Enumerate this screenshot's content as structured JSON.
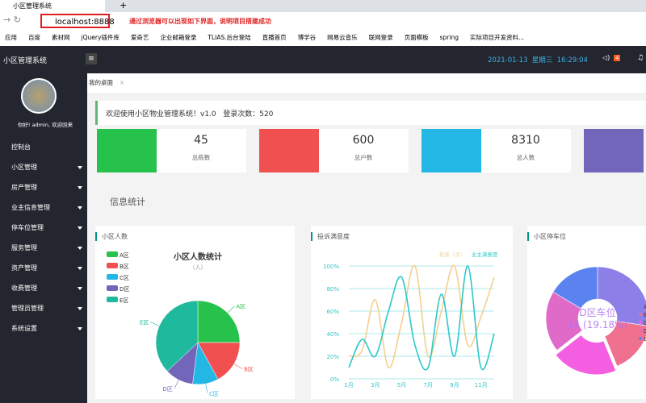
{
  "browser": {
    "tab_title": "小区管理系统",
    "address": "localhost:8888",
    "annotation": "通过浏览器可以出现如下界面，说明项目搭建成功",
    "bookmarks": [
      "应用",
      "百度",
      "素材网",
      "jQuery插件库",
      "爱奇艺",
      "企业邮箱登录",
      "TLIAS.后台登陆",
      "直播首页",
      "博学谷",
      "网易云音乐",
      "联网登录",
      "页面模板",
      "spring",
      "实际项目开发资料..."
    ]
  },
  "app": {
    "title": "小区管理系统",
    "datetime": "2021-01-13  星期三  16:29:04",
    "notice_count": 4,
    "user_greeting": "你好! admin, 欢迎回来",
    "menu": [
      "控制台",
      "小区管理",
      "房产管理",
      "业主信息管理",
      "停车位管理",
      "服务管理",
      "资产管理",
      "收费管理",
      "管理员管理",
      "系统设置"
    ],
    "tab": "我的桌面",
    "welcome": "欢迎使用小区物业管理系统！v1.0   登录次数：520",
    "stats": [
      {
        "value": 45,
        "label": "总栋数"
      },
      {
        "value": 600,
        "label": "总户数"
      },
      {
        "value": 8310,
        "label": "总人数"
      }
    ],
    "section_title": "信息统计",
    "panels": [
      "小区人数",
      "投诉满意度",
      "小区停车位"
    ]
  },
  "chart_data": [
    {
      "type": "pie",
      "title": "小区人数统计",
      "subtitle": "（人）",
      "categories": [
        "A区",
        "B区",
        "C区",
        "D区",
        "E区"
      ],
      "values": [
        25,
        17,
        10,
        11,
        37
      ],
      "colors": [
        "#27c24c",
        "#f05050",
        "#23b7e5",
        "#7266ba",
        "#1fb99e"
      ]
    },
    {
      "type": "line",
      "categories": [
        "1月",
        null,
        "3月",
        null,
        "5月",
        null,
        "7月",
        null,
        "9月",
        null,
        "11月",
        null
      ],
      "ylim": [
        0,
        100
      ],
      "yticks": [
        {
          "value": 0,
          "label": "0%"
        },
        {
          "value": 20,
          "label": "20%"
        },
        {
          "value": 40,
          "label": "40%"
        },
        {
          "value": 60,
          "label": "60%"
        },
        {
          "value": 80,
          "label": "80%"
        },
        {
          "value": 100,
          "label": "100%"
        }
      ],
      "grid": true,
      "series": [
        {
          "name": "投诉（次）",
          "color": "#f5cf8e",
          "values": [
            20,
            25,
            70,
            10,
            50,
            100,
            20,
            60,
            100,
            30,
            55,
            90
          ]
        },
        {
          "name": "业主满意度",
          "color": "#2ec7c9",
          "values": [
            10,
            35,
            20,
            60,
            90,
            30,
            10,
            75,
            20,
            100,
            10,
            40
          ]
        }
      ]
    },
    {
      "type": "donut",
      "categories": [
        "A区",
        "B区",
        "C区",
        "D区",
        "E区"
      ],
      "values": [
        20,
        12,
        15,
        14,
        12
      ],
      "colors": [
        "#8d7fe8",
        "#f07090",
        "#f45ee0",
        "#e06ac8",
        "#5b83f0"
      ],
      "center_label": {
        "name": "D区车位",
        "value": "14 (19.18%)"
      }
    }
  ]
}
